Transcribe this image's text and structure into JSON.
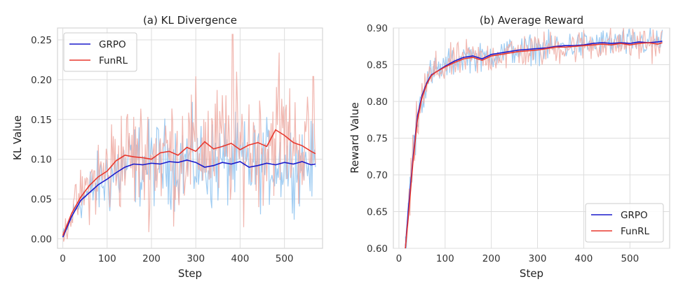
{
  "chart_data": [
    {
      "type": "line",
      "title": "(a) KL Divergence",
      "xlabel": "Step",
      "ylabel": "KL Value",
      "xlim": [
        -12,
        586
      ],
      "ylim": [
        -0.012,
        0.265
      ],
      "xticks": [
        0,
        100,
        200,
        300,
        400,
        500
      ],
      "yticks": [
        0.0,
        0.05,
        0.1,
        0.15,
        0.2,
        0.25
      ],
      "ytick_labels": [
        "0.00",
        "0.05",
        "0.10",
        "0.15",
        "0.20",
        "0.25"
      ],
      "grid": true,
      "legend": "top-left",
      "x_max": 570,
      "series": [
        {
          "name": "GRPO",
          "color": "#1a1acc",
          "raw_color": "#8ec3f0",
          "smoothed": [
            [
              0,
              0.002
            ],
            [
              20,
              0.028
            ],
            [
              40,
              0.048
            ],
            [
              60,
              0.058
            ],
            [
              80,
              0.068
            ],
            [
              100,
              0.075
            ],
            [
              120,
              0.083
            ],
            [
              140,
              0.09
            ],
            [
              160,
              0.094
            ],
            [
              180,
              0.093
            ],
            [
              200,
              0.095
            ],
            [
              220,
              0.094
            ],
            [
              240,
              0.097
            ],
            [
              260,
              0.096
            ],
            [
              280,
              0.099
            ],
            [
              300,
              0.096
            ],
            [
              320,
              0.09
            ],
            [
              340,
              0.092
            ],
            [
              360,
              0.096
            ],
            [
              380,
              0.094
            ],
            [
              400,
              0.097
            ],
            [
              420,
              0.09
            ],
            [
              440,
              0.092
            ],
            [
              460,
              0.095
            ],
            [
              480,
              0.093
            ],
            [
              500,
              0.096
            ],
            [
              520,
              0.094
            ],
            [
              540,
              0.097
            ],
            [
              560,
              0.093
            ],
            [
              570,
              0.094
            ]
          ],
          "raw_spread": [
            [
              0,
              0.005
            ],
            [
              100,
              0.03
            ],
            [
              300,
              0.035
            ],
            [
              570,
              0.03
            ]
          ]
        },
        {
          "name": "FunRL",
          "color": "#e8392f",
          "raw_color": "#eeaaa2",
          "smoothed": [
            [
              0,
              0.004
            ],
            [
              20,
              0.032
            ],
            [
              40,
              0.052
            ],
            [
              60,
              0.067
            ],
            [
              80,
              0.078
            ],
            [
              100,
              0.085
            ],
            [
              120,
              0.098
            ],
            [
              140,
              0.105
            ],
            [
              160,
              0.103
            ],
            [
              180,
              0.102
            ],
            [
              200,
              0.1
            ],
            [
              220,
              0.108
            ],
            [
              240,
              0.11
            ],
            [
              260,
              0.105
            ],
            [
              280,
              0.115
            ],
            [
              300,
              0.11
            ],
            [
              320,
              0.122
            ],
            [
              340,
              0.113
            ],
            [
              360,
              0.116
            ],
            [
              380,
              0.12
            ],
            [
              400,
              0.112
            ],
            [
              420,
              0.118
            ],
            [
              440,
              0.121
            ],
            [
              460,
              0.116
            ],
            [
              480,
              0.137
            ],
            [
              500,
              0.13
            ],
            [
              520,
              0.121
            ],
            [
              540,
              0.117
            ],
            [
              560,
              0.11
            ],
            [
              570,
              0.107
            ]
          ],
          "raw_spread": [
            [
              0,
              0.008
            ],
            [
              100,
              0.04
            ],
            [
              300,
              0.05
            ],
            [
              570,
              0.045
            ]
          ],
          "raw_peaks": [
            [
              383,
              0.257
            ],
            [
              488,
              0.234
            ],
            [
              565,
              0.204
            ]
          ]
        }
      ]
    },
    {
      "type": "line",
      "title": "(b) Average Reward",
      "xlabel": "Step",
      "ylabel": "Reward Value",
      "xlim": [
        -12,
        586
      ],
      "ylim": [
        0.6,
        0.9
      ],
      "xticks": [
        0,
        100,
        200,
        300,
        400,
        500
      ],
      "yticks": [
        0.6,
        0.65,
        0.7,
        0.75,
        0.8,
        0.85,
        0.9
      ],
      "ytick_labels": [
        "0.60",
        "0.65",
        "0.70",
        "0.75",
        "0.80",
        "0.85",
        "0.90"
      ],
      "grid": true,
      "legend": "bottom-right",
      "x_max": 570,
      "series": [
        {
          "name": "GRPO",
          "color": "#1a1acc",
          "raw_color": "#8ec3f0",
          "smoothed": [
            [
              14,
              0.6
            ],
            [
              20,
              0.65
            ],
            [
              30,
              0.72
            ],
            [
              40,
              0.78
            ],
            [
              50,
              0.808
            ],
            [
              60,
              0.825
            ],
            [
              70,
              0.836
            ],
            [
              80,
              0.84
            ],
            [
              100,
              0.848
            ],
            [
              120,
              0.855
            ],
            [
              140,
              0.86
            ],
            [
              160,
              0.862
            ],
            [
              180,
              0.858
            ],
            [
              200,
              0.864
            ],
            [
              220,
              0.866
            ],
            [
              240,
              0.868
            ],
            [
              260,
              0.87
            ],
            [
              280,
              0.871
            ],
            [
              300,
              0.872
            ],
            [
              320,
              0.873
            ],
            [
              340,
              0.875
            ],
            [
              360,
              0.876
            ],
            [
              380,
              0.876
            ],
            [
              400,
              0.877
            ],
            [
              420,
              0.879
            ],
            [
              440,
              0.88
            ],
            [
              460,
              0.879
            ],
            [
              480,
              0.88
            ],
            [
              500,
              0.879
            ],
            [
              520,
              0.881
            ],
            [
              540,
              0.88
            ],
            [
              560,
              0.881
            ],
            [
              570,
              0.882
            ]
          ],
          "raw_spread": [
            [
              0,
              0.02
            ],
            [
              100,
              0.012
            ],
            [
              570,
              0.012
            ]
          ]
        },
        {
          "name": "FunRL",
          "color": "#e8392f",
          "raw_color": "#eeaaa2",
          "smoothed": [
            [
              14,
              0.6
            ],
            [
              20,
              0.64
            ],
            [
              30,
              0.715
            ],
            [
              40,
              0.775
            ],
            [
              50,
              0.805
            ],
            [
              60,
              0.823
            ],
            [
              70,
              0.835
            ],
            [
              80,
              0.84
            ],
            [
              100,
              0.847
            ],
            [
              120,
              0.853
            ],
            [
              140,
              0.858
            ],
            [
              160,
              0.86
            ],
            [
              180,
              0.856
            ],
            [
              200,
              0.862
            ],
            [
              220,
              0.864
            ],
            [
              240,
              0.866
            ],
            [
              260,
              0.868
            ],
            [
              280,
              0.869
            ],
            [
              300,
              0.87
            ],
            [
              320,
              0.872
            ],
            [
              340,
              0.874
            ],
            [
              360,
              0.874
            ],
            [
              380,
              0.875
            ],
            [
              400,
              0.876
            ],
            [
              420,
              0.877
            ],
            [
              440,
              0.878
            ],
            [
              460,
              0.877
            ],
            [
              480,
              0.879
            ],
            [
              500,
              0.877
            ],
            [
              520,
              0.879
            ],
            [
              540,
              0.88
            ],
            [
              560,
              0.878
            ],
            [
              570,
              0.88
            ]
          ],
          "raw_spread": [
            [
              0,
              0.025
            ],
            [
              100,
              0.015
            ],
            [
              570,
              0.014
            ]
          ]
        }
      ]
    }
  ]
}
